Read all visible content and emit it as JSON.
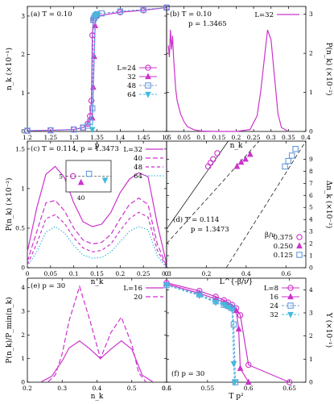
{
  "colors": {
    "magenta": "#cc33cc",
    "blue": "#6699dd",
    "cyan": "#44bbdd",
    "black": "#000000"
  },
  "chart_data": [
    {
      "id": "a",
      "type": "line",
      "panel_label": "(a)",
      "annotation": "T = 0.10",
      "xlabel": "p",
      "ylabel": "n_k  (×10⁻¹)",
      "xlim": [
        1.2,
        1.5
      ],
      "ylim": [
        0,
        3.25
      ],
      "xticks": [
        "1.2",
        "1.25",
        "1.3",
        "1.35",
        "1.4",
        "1.45",
        "1.5"
      ],
      "yticks": [
        "0",
        "1",
        "2",
        "3"
      ],
      "legend_position": "center-right",
      "series": [
        {
          "name": "L=24",
          "marker": "circle",
          "x": [
            1.2,
            1.25,
            1.3,
            1.32,
            1.33,
            1.335,
            1.338,
            1.34,
            1.342,
            1.345,
            1.35,
            1.4,
            1.45,
            1.5
          ],
          "y": [
            0.02,
            0.03,
            0.05,
            0.1,
            0.2,
            0.4,
            0.8,
            2.5,
            2.9,
            2.95,
            3.0,
            3.1,
            3.15,
            3.22
          ]
        },
        {
          "name": "32",
          "marker": "triangle-up",
          "x": [
            1.34,
            1.342,
            1.344,
            1.346,
            1.348
          ],
          "y": [
            0.35,
            1.15,
            1.95,
            2.75,
            3.0
          ]
        },
        {
          "name": "48",
          "marker": "square",
          "x": [
            1.2,
            1.25,
            1.3,
            1.32,
            1.33,
            1.335,
            1.34,
            1.342,
            1.344,
            1.346,
            1.348,
            1.35,
            1.36,
            1.4,
            1.45,
            1.5
          ],
          "y": [
            0.02,
            0.03,
            0.05,
            0.1,
            0.15,
            0.25,
            0.6,
            2.9,
            2.95,
            3.0,
            3.02,
            3.05,
            3.07,
            3.12,
            3.17,
            3.22
          ]
        },
        {
          "name": "64",
          "marker": "triangle-down",
          "x": [
            1.34,
            1.3465,
            1.35
          ],
          "y": [
            0.05,
            3.0,
            3.05
          ]
        }
      ]
    },
    {
      "id": "b",
      "type": "line",
      "panel_label": "(b)",
      "annotation": "T = 0.10",
      "annotation2": "p = 1.3465",
      "xlabel": "n_k",
      "ylabel": "P(n_k)  (×10⁻²)",
      "xlim": [
        0,
        0.4
      ],
      "ylim": [
        0,
        3.2
      ],
      "xticks": [
        "0",
        "0.05",
        "0.1",
        "0.15",
        "0.2",
        "0.25",
        "0.3",
        "0.35",
        "0.4"
      ],
      "yticks": [
        "0",
        "1",
        "2",
        "3"
      ],
      "legend_position": "top-right",
      "series": [
        {
          "name": "L=32",
          "x": [
            0.005,
            0.008,
            0.011,
            0.014,
            0.017,
            0.02,
            0.023,
            0.026,
            0.03,
            0.04,
            0.05,
            0.06,
            0.08,
            0.1,
            0.15,
            0.2,
            0.24,
            0.26,
            0.27,
            0.28,
            0.29,
            0.3,
            0.31,
            0.32,
            0.33,
            0.35
          ],
          "y": [
            2.2,
            1.9,
            2.6,
            2.1,
            2.45,
            1.9,
            1.5,
            1.1,
            0.8,
            0.45,
            0.25,
            0.12,
            0.04,
            0.01,
            0.0,
            0.0,
            0.05,
            0.4,
            1.0,
            1.8,
            2.6,
            2.35,
            1.4,
            0.45,
            0.1,
            0.0
          ]
        }
      ]
    },
    {
      "id": "c",
      "type": "line",
      "panel_label": "(c)",
      "annotation": "T = 0.114, p = 1.3473",
      "xlabel": "n_k",
      "ylabel": "P(n_k)  (×10⁻²)",
      "xlim": [
        0,
        0.3
      ],
      "ylim": [
        0,
        1.6
      ],
      "xticks": [
        "0",
        "0.05",
        "0.1",
        "0.15",
        "0.2",
        "0.25",
        "0.3"
      ],
      "yticks": [
        "0",
        "0.5",
        "1",
        "1.5"
      ],
      "legend_position": "top-right",
      "series": [
        {
          "name": "L=32",
          "style": "solid",
          "x": [
            0,
            0.02,
            0.04,
            0.06,
            0.08,
            0.1,
            0.12,
            0.14,
            0.16,
            0.18,
            0.2,
            0.22,
            0.24,
            0.26,
            0.28,
            0.3
          ],
          "y": [
            0.2,
            0.75,
            1.18,
            1.28,
            1.14,
            0.82,
            0.58,
            0.52,
            0.55,
            0.7,
            0.95,
            1.12,
            1.2,
            1.15,
            0.55,
            0.05
          ]
        },
        {
          "name": "40",
          "style": "dashed",
          "x": [
            0,
            0.02,
            0.04,
            0.06,
            0.08,
            0.1,
            0.12,
            0.14,
            0.16,
            0.18,
            0.2,
            0.22,
            0.24,
            0.26,
            0.28,
            0.3
          ],
          "y": [
            0.08,
            0.45,
            0.82,
            0.85,
            0.72,
            0.5,
            0.35,
            0.3,
            0.32,
            0.42,
            0.62,
            0.8,
            0.88,
            0.8,
            0.3,
            0.02
          ]
        },
        {
          "name": "48",
          "style": "dashed",
          "x": [
            0,
            0.02,
            0.04,
            0.06,
            0.08,
            0.1,
            0.12,
            0.14,
            0.16,
            0.18,
            0.2,
            0.22,
            0.24,
            0.26,
            0.28,
            0.3
          ],
          "y": [
            0.04,
            0.3,
            0.62,
            0.67,
            0.56,
            0.38,
            0.25,
            0.2,
            0.22,
            0.3,
            0.47,
            0.62,
            0.7,
            0.64,
            0.22,
            0.01
          ]
        },
        {
          "name": "64",
          "style": "dotted",
          "x": [
            0,
            0.02,
            0.04,
            0.06,
            0.08,
            0.1,
            0.12,
            0.14,
            0.16,
            0.18,
            0.2,
            0.22,
            0.24,
            0.26,
            0.28,
            0.3
          ],
          "y": [
            0.02,
            0.2,
            0.45,
            0.52,
            0.44,
            0.28,
            0.16,
            0.12,
            0.13,
            0.2,
            0.33,
            0.46,
            0.52,
            0.48,
            0.15,
            0.0
          ]
        }
      ],
      "inset": {
        "xtick": "40",
        "ytick": "5",
        "ylim": [
          4,
          6
        ],
        "xlim": [
          25,
          70
        ],
        "points": [
          {
            "x": 32,
            "y": 5.0,
            "marker": "circle"
          },
          {
            "x": 40,
            "y": 4.6,
            "marker": "triangle-up"
          },
          {
            "x": 48,
            "y": 5.15,
            "marker": "square"
          },
          {
            "x": 64,
            "y": 4.75,
            "marker": "triangle-down"
          }
        ]
      }
    },
    {
      "id": "d",
      "type": "scatter",
      "panel_label": "(d)",
      "annotation": "T = 0.114",
      "annotation2": "p = 1.3473",
      "xlabel": "L^{-β/ν}",
      "ylabel": "Δn_k  (×10⁻²)",
      "xlim": [
        0,
        0.7
      ],
      "ylim": [
        0,
        10.5
      ],
      "xticks": [
        "0",
        "0.2",
        "0.4",
        "0.6"
      ],
      "yticks": [
        "0",
        "1",
        "2",
        "3",
        "4",
        "5",
        "6",
        "7",
        "8",
        "9"
      ],
      "legend_title": "β/ν",
      "legend_position": "bottom-right",
      "series": [
        {
          "name": "0.375",
          "marker": "circle",
          "line": "solid",
          "x": [
            0.209,
            0.221,
            0.234,
            0.255
          ],
          "y": [
            8.4,
            8.7,
            9.0,
            9.5
          ],
          "fit": [
            [
              0,
              3.2
            ],
            [
              0.31,
              10.5
            ]
          ]
        },
        {
          "name": "0.250",
          "marker": "triangle-up",
          "line": "dashed",
          "x": [
            0.354,
            0.375,
            0.397,
            0.42
          ],
          "y": [
            8.4,
            8.75,
            9.0,
            9.4
          ],
          "fit": [
            [
              0,
              2.0
            ],
            [
              0.465,
              10.5
            ]
          ]
        },
        {
          "name": "0.125",
          "marker": "square",
          "line": "dashed",
          "x": [
            0.595,
            0.612,
            0.63,
            0.648
          ],
          "y": [
            8.4,
            8.85,
            9.3,
            9.85
          ],
          "fit": [
            [
              0.3,
              0
            ],
            [
              0.7,
              10.5
            ]
          ]
        }
      ]
    },
    {
      "id": "e",
      "type": "line",
      "panel_label": "(e)",
      "annotation": "p = 30",
      "xlabel": "n_k",
      "ylabel": "P(n_k)/P_min(n_k)",
      "xlim": [
        0.2,
        0.6
      ],
      "ylim": [
        0,
        4.4
      ],
      "xticks": [
        "0.2",
        "0.3",
        "0.4",
        "0.5",
        "0.6"
      ],
      "yticks": [
        "0",
        "1",
        "2",
        "3",
        "4"
      ],
      "legend_position": "top-right",
      "series": [
        {
          "name": "L=16",
          "style": "solid",
          "x": [
            0.24,
            0.27,
            0.3,
            0.32,
            0.35,
            0.38,
            0.41,
            0.44,
            0.47,
            0.5,
            0.53,
            0.56
          ],
          "y": [
            0.02,
            0.25,
            0.9,
            1.45,
            1.75,
            1.4,
            1.0,
            1.4,
            1.75,
            1.4,
            0.3,
            0.02
          ]
        },
        {
          "name": "20",
          "style": "dashed",
          "x": [
            0.26,
            0.28,
            0.3,
            0.32,
            0.35,
            0.38,
            0.41,
            0.44,
            0.47,
            0.5,
            0.52,
            0.54
          ],
          "y": [
            0.02,
            0.3,
            1.2,
            2.6,
            4.05,
            2.6,
            1.0,
            2.1,
            2.75,
            1.6,
            0.4,
            0.02
          ]
        }
      ]
    },
    {
      "id": "f",
      "type": "line",
      "panel_label": "(f)",
      "annotation": "p = 30",
      "xlabel": "T p²",
      "ylabel": "Υ  (×10⁻¹)",
      "xlim": [
        0.5,
        0.67
      ],
      "ylim": [
        0,
        4.5
      ],
      "xticks": [
        "0.5",
        "0.55",
        "0.6",
        "0.65"
      ],
      "yticks": [
        "0",
        "1",
        "2",
        "3",
        "4"
      ],
      "legend_position": "top-right",
      "series": [
        {
          "name": "L=8",
          "marker": "circle",
          "x": [
            0.5,
            0.54,
            0.56,
            0.57,
            0.575,
            0.58,
            0.585,
            0.59,
            0.6,
            0.65
          ],
          "y": [
            4.3,
            3.95,
            3.7,
            3.55,
            3.45,
            3.35,
            3.2,
            2.9,
            0.75,
            0.0
          ]
        },
        {
          "name": "16",
          "marker": "triangle-up",
          "x": [
            0.5,
            0.54,
            0.56,
            0.57,
            0.575,
            0.58,
            0.585,
            0.588,
            0.59,
            0.6
          ],
          "y": [
            4.25,
            3.85,
            3.6,
            3.45,
            3.35,
            3.25,
            3.1,
            2.3,
            0.6,
            0.0
          ]
        },
        {
          "name": "24",
          "marker": "square",
          "x": [
            0.5,
            0.54,
            0.56,
            0.57,
            0.575,
            0.58,
            0.582,
            0.584
          ],
          "y": [
            4.2,
            3.8,
            3.5,
            3.35,
            3.3,
            3.2,
            2.5,
            0.0
          ]
        },
        {
          "name": "32",
          "marker": "triangle-down",
          "x": [
            0.5,
            0.54,
            0.56,
            0.57,
            0.575,
            0.58,
            0.582,
            0.583
          ],
          "y": [
            4.2,
            3.75,
            3.45,
            3.35,
            3.25,
            3.15,
            0.8,
            0.0
          ]
        }
      ]
    }
  ],
  "legend_names": {
    "a": [
      "L=24",
      "32",
      "48",
      "64"
    ],
    "b": [
      "L=32"
    ],
    "c": [
      "L=32",
      "40",
      "48",
      "64"
    ],
    "d": [
      "0.375",
      "0.250",
      "0.125"
    ],
    "e": [
      "L=16",
      "20"
    ],
    "f": [
      "L=8",
      "16",
      "24",
      "32"
    ]
  }
}
